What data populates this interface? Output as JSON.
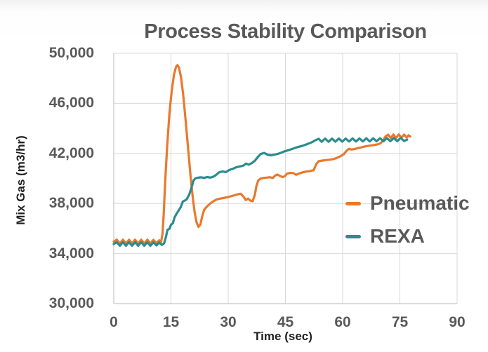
{
  "chart_data": {
    "type": "line",
    "title": "Process Stability Comparison",
    "xlabel": "Time (sec)",
    "ylabel": "Mix Gas (m3/hr)",
    "xlim": [
      0,
      90
    ],
    "ylim": [
      30000,
      50000
    ],
    "x_ticks": [
      0,
      15,
      30,
      45,
      60,
      75,
      90
    ],
    "x_tick_labels": [
      "0",
      "15",
      "30",
      "45",
      "60",
      "75",
      "90"
    ],
    "y_ticks": [
      30000,
      34000,
      38000,
      42000,
      46000,
      50000
    ],
    "y_tick_labels": [
      "30,000",
      "34,000",
      "38,000",
      "42,000",
      "46,000",
      "50,000"
    ],
    "grid": true,
    "grid_color": "#d9d9d9",
    "axis_color": "#c6c6c6",
    "title_color": "#585858",
    "tick_color": "#595959",
    "legend_position": "middle-right",
    "series": [
      {
        "name": "Pneumatic",
        "color": "#E8792E",
        "points": [
          [
            0,
            34950
          ],
          [
            0.8,
            35110
          ],
          [
            1.6,
            34800
          ],
          [
            2.4,
            35110
          ],
          [
            3.2,
            34800
          ],
          [
            4,
            35110
          ],
          [
            4.8,
            34800
          ],
          [
            5.6,
            35110
          ],
          [
            6.4,
            34800
          ],
          [
            7.2,
            35110
          ],
          [
            8,
            34800
          ],
          [
            8.8,
            35110
          ],
          [
            9.6,
            34810
          ],
          [
            10.4,
            35090
          ],
          [
            11.2,
            34830
          ],
          [
            11.9,
            35060
          ],
          [
            12.4,
            34920
          ],
          [
            12.8,
            35600
          ],
          [
            13.1,
            37200
          ],
          [
            13.5,
            39800
          ],
          [
            14,
            42600
          ],
          [
            14.6,
            45200
          ],
          [
            15.2,
            47000
          ],
          [
            15.8,
            48300
          ],
          [
            16.3,
            48900
          ],
          [
            16.7,
            49060
          ],
          [
            17.1,
            48850
          ],
          [
            17.6,
            48150
          ],
          [
            18.2,
            46700
          ],
          [
            18.8,
            44800
          ],
          [
            19.5,
            42400
          ],
          [
            20.1,
            40300
          ],
          [
            20.7,
            38500
          ],
          [
            21.2,
            37300
          ],
          [
            21.7,
            36500
          ],
          [
            22.2,
            36130
          ],
          [
            22.7,
            36300
          ],
          [
            23.2,
            37000
          ],
          [
            23.7,
            37500
          ],
          [
            24.4,
            37750
          ],
          [
            25.2,
            37980
          ],
          [
            26,
            38150
          ],
          [
            26.8,
            38300
          ],
          [
            27.7,
            38380
          ],
          [
            28.7,
            38430
          ],
          [
            29.7,
            38500
          ],
          [
            30.7,
            38570
          ],
          [
            31.7,
            38660
          ],
          [
            32.6,
            38740
          ],
          [
            33.3,
            38780
          ],
          [
            34,
            38550
          ],
          [
            34.6,
            38280
          ],
          [
            35.2,
            38390
          ],
          [
            35.8,
            38230
          ],
          [
            36.4,
            38180
          ],
          [
            37,
            38700
          ],
          [
            37.4,
            39400
          ],
          [
            37.9,
            39850
          ],
          [
            38.5,
            39990
          ],
          [
            39.2,
            40040
          ],
          [
            40,
            40060
          ],
          [
            40.8,
            40100
          ],
          [
            41.7,
            40040
          ],
          [
            42.4,
            40250
          ],
          [
            42.9,
            40310
          ],
          [
            43.6,
            40200
          ],
          [
            44.2,
            40110
          ],
          [
            44.8,
            40170
          ],
          [
            45.4,
            40380
          ],
          [
            46.2,
            40440
          ],
          [
            47,
            40430
          ],
          [
            47.8,
            40290
          ],
          [
            48.6,
            40400
          ],
          [
            49.5,
            40490
          ],
          [
            50.4,
            40550
          ],
          [
            51.4,
            40580
          ],
          [
            52.4,
            40660
          ],
          [
            53.1,
            41150
          ],
          [
            53.7,
            41380
          ],
          [
            54.7,
            41430
          ],
          [
            55.7,
            41470
          ],
          [
            56.7,
            41500
          ],
          [
            57.7,
            41550
          ],
          [
            58.6,
            41660
          ],
          [
            59.5,
            41790
          ],
          [
            60.3,
            41930
          ],
          [
            61,
            42200
          ],
          [
            61.6,
            42370
          ],
          [
            62.3,
            42310
          ],
          [
            63.2,
            42360
          ],
          [
            64.1,
            42430
          ],
          [
            65.1,
            42500
          ],
          [
            66.1,
            42570
          ],
          [
            67.1,
            42620
          ],
          [
            68.1,
            42660
          ],
          [
            69,
            42710
          ],
          [
            69.9,
            42800
          ],
          [
            70.6,
            43050
          ],
          [
            71.2,
            43350
          ],
          [
            71.9,
            43500
          ],
          [
            72.6,
            43230
          ],
          [
            73.3,
            43510
          ],
          [
            74,
            43240
          ],
          [
            74.7,
            43510
          ],
          [
            75.4,
            43250
          ],
          [
            76.1,
            43500
          ],
          [
            76.8,
            43270
          ],
          [
            77.3,
            43450
          ],
          [
            77.7,
            43350
          ]
        ]
      },
      {
        "name": "REXA",
        "color": "#2B8C8E",
        "points": [
          [
            0,
            34760
          ],
          [
            0.8,
            34910
          ],
          [
            1.6,
            34620
          ],
          [
            2.4,
            34910
          ],
          [
            3.2,
            34620
          ],
          [
            4,
            34910
          ],
          [
            4.8,
            34620
          ],
          [
            5.6,
            34910
          ],
          [
            6.4,
            34620
          ],
          [
            7.2,
            34910
          ],
          [
            8,
            34620
          ],
          [
            8.8,
            34910
          ],
          [
            9.6,
            34630
          ],
          [
            10.4,
            34900
          ],
          [
            11.2,
            34650
          ],
          [
            11.9,
            34880
          ],
          [
            12.6,
            34690
          ],
          [
            13.2,
            34810
          ],
          [
            13.7,
            35350
          ],
          [
            14.1,
            35900
          ],
          [
            14.6,
            35980
          ],
          [
            15,
            36300
          ],
          [
            15.5,
            36420
          ],
          [
            15.9,
            36850
          ],
          [
            16.4,
            37150
          ],
          [
            17,
            37440
          ],
          [
            17.6,
            37730
          ],
          [
            18.1,
            38150
          ],
          [
            18.6,
            38230
          ],
          [
            19.1,
            38330
          ],
          [
            19.8,
            38720
          ],
          [
            20.4,
            39280
          ],
          [
            20.9,
            39840
          ],
          [
            21.4,
            40010
          ],
          [
            22.1,
            40060
          ],
          [
            22.9,
            40090
          ],
          [
            23.7,
            40050
          ],
          [
            24.5,
            40110
          ],
          [
            25.3,
            40070
          ],
          [
            26.1,
            40140
          ],
          [
            26.9,
            40300
          ],
          [
            27.6,
            40490
          ],
          [
            28.5,
            40560
          ],
          [
            29.4,
            40510
          ],
          [
            30.3,
            40680
          ],
          [
            31.2,
            40770
          ],
          [
            32.1,
            40890
          ],
          [
            33,
            40960
          ],
          [
            33.9,
            41020
          ],
          [
            34.7,
            41190
          ],
          [
            35.4,
            41100
          ],
          [
            36.2,
            41230
          ],
          [
            37,
            41420
          ],
          [
            37.8,
            41730
          ],
          [
            38.5,
            41950
          ],
          [
            39.4,
            42040
          ],
          [
            40.3,
            41900
          ],
          [
            41.2,
            41850
          ],
          [
            42.1,
            41900
          ],
          [
            43,
            41960
          ],
          [
            43.9,
            42060
          ],
          [
            44.8,
            42170
          ],
          [
            45.8,
            42260
          ],
          [
            46.8,
            42360
          ],
          [
            47.7,
            42460
          ],
          [
            48.6,
            42540
          ],
          [
            49.5,
            42610
          ],
          [
            50.4,
            42710
          ],
          [
            51.3,
            42810
          ],
          [
            52.1,
            42920
          ],
          [
            52.9,
            43060
          ],
          [
            53.7,
            43170
          ],
          [
            54.5,
            42930
          ],
          [
            55.4,
            43180
          ],
          [
            56.3,
            42930
          ],
          [
            57.2,
            43180
          ],
          [
            58.1,
            42940
          ],
          [
            59,
            43190
          ],
          [
            59.9,
            42940
          ],
          [
            60.8,
            43190
          ],
          [
            61.7,
            42950
          ],
          [
            62.6,
            43200
          ],
          [
            63.5,
            42950
          ],
          [
            64.4,
            43200
          ],
          [
            65.3,
            42960
          ],
          [
            66.2,
            43210
          ],
          [
            67.1,
            42960
          ],
          [
            68,
            43210
          ],
          [
            68.9,
            42970
          ],
          [
            69.8,
            43220
          ],
          [
            70.7,
            42970
          ],
          [
            71.6,
            43220
          ],
          [
            72.5,
            42980
          ],
          [
            73.4,
            43230
          ],
          [
            74.3,
            42980
          ],
          [
            75.2,
            43240
          ],
          [
            76.1,
            42990
          ],
          [
            76.9,
            43100
          ]
        ]
      }
    ]
  }
}
